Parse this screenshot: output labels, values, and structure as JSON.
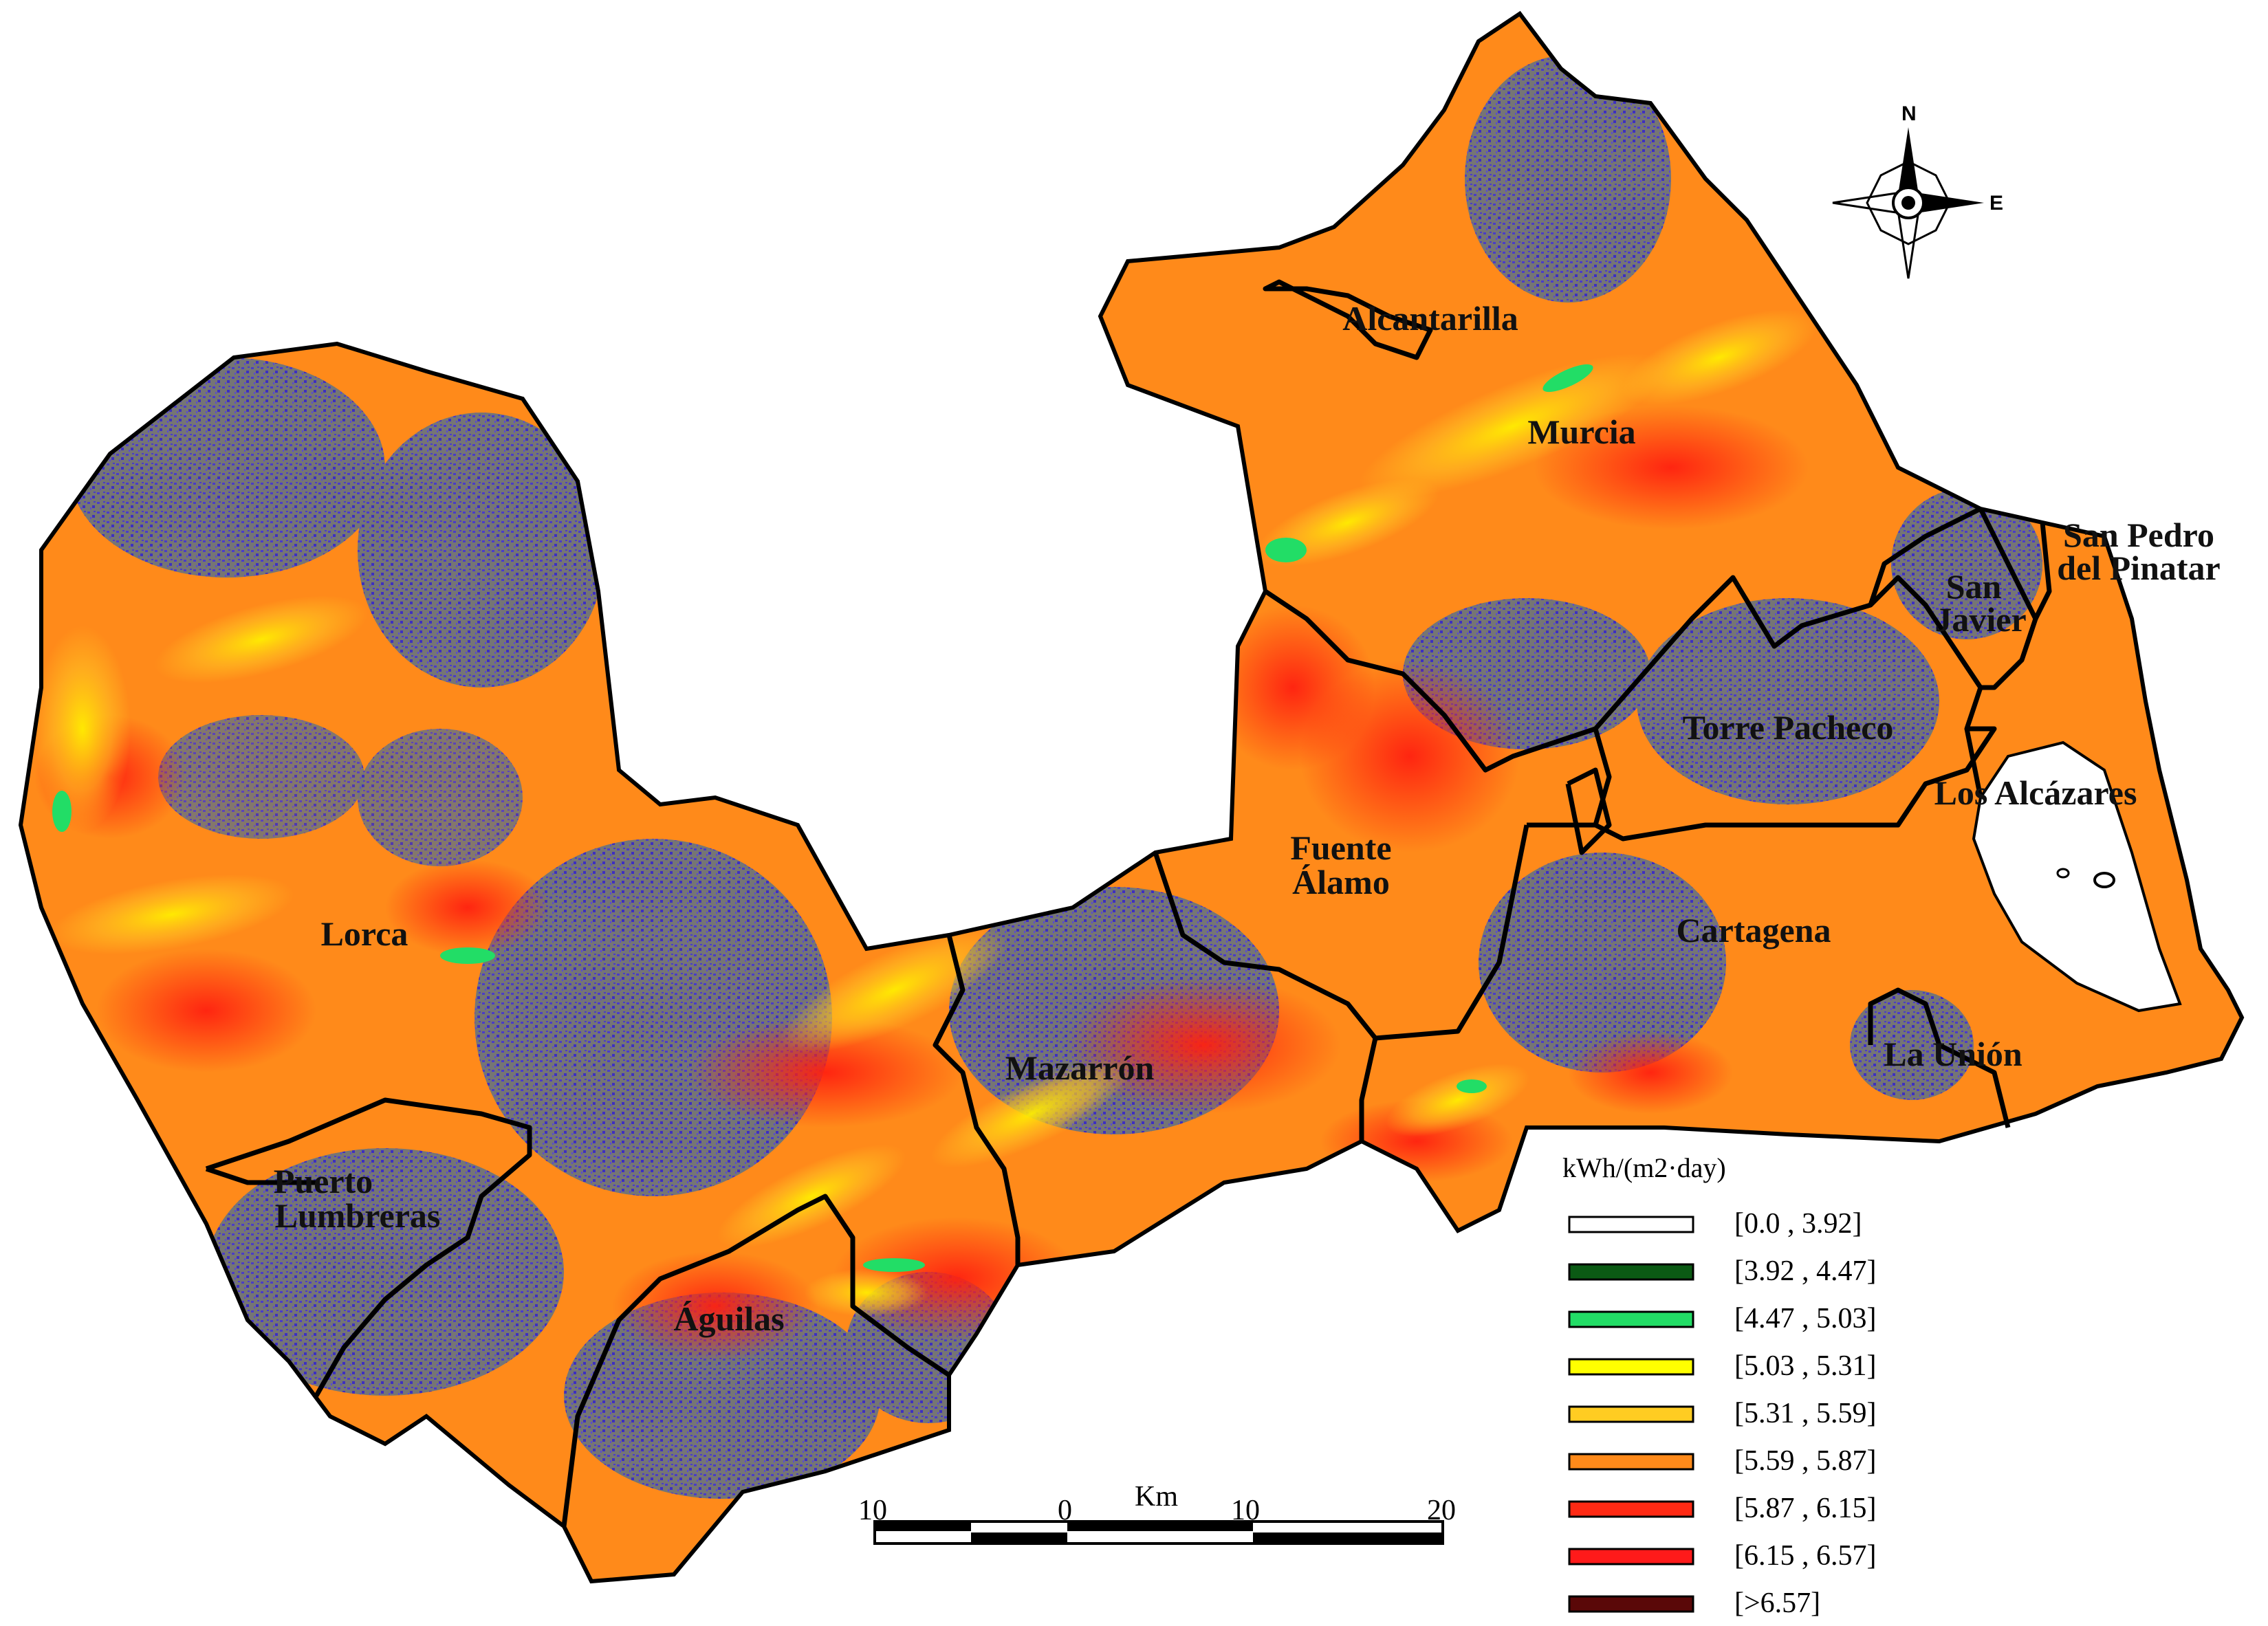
{
  "municipalities": [
    {
      "id": "lorca",
      "label_lines": [
        "Lorca"
      ]
    },
    {
      "id": "puerto-lumbreras",
      "label_lines": [
        "Puerto",
        "Lumbreras"
      ]
    },
    {
      "id": "aguilas",
      "label_lines": [
        "Águilas"
      ]
    },
    {
      "id": "mazarron",
      "label_lines": [
        "Mazarrón"
      ]
    },
    {
      "id": "fuente-alamo",
      "label_lines": [
        "Fuente",
        "Álamo"
      ]
    },
    {
      "id": "cartagena",
      "label_lines": [
        "Cartagena"
      ]
    },
    {
      "id": "la-union",
      "label_lines": [
        "La Unión"
      ]
    },
    {
      "id": "murcia",
      "label_lines": [
        "Murcia"
      ]
    },
    {
      "id": "alcantarilla",
      "label_lines": [
        "Alcantarilla"
      ]
    },
    {
      "id": "torre-pacheco",
      "label_lines": [
        "Torre Pacheco"
      ]
    },
    {
      "id": "san-javier",
      "label_lines": [
        "San",
        "Javier"
      ]
    },
    {
      "id": "san-pedro",
      "label_lines": [
        "San Pedro",
        "del Pinatar"
      ]
    },
    {
      "id": "los-alcazares",
      "label_lines": [
        "Los Alcázares"
      ]
    }
  ],
  "legend": {
    "title": "kWh/(m2·day)",
    "items": [
      {
        "label": "[0.0 , 3.92]",
        "color": "#ffffff"
      },
      {
        "label": "[3.92 , 4.47]",
        "color": "#0b5a14"
      },
      {
        "label": "[4.47 , 5.03]",
        "color": "#22dd66"
      },
      {
        "label": "[5.03 , 5.31]",
        "color": "#ffff00"
      },
      {
        "label": "[5.31 , 5.59]",
        "color": "#ffcc22"
      },
      {
        "label": "[5.59 , 5.87]",
        "color": "#ff8a1a"
      },
      {
        "label": "[5.87 , 6.15]",
        "color": "#ff2a14"
      },
      {
        "label": "[6.15 , 6.57]",
        "color": "#ff1a1a"
      },
      {
        "label": "[>6.57]",
        "color": "#5a0808"
      }
    ]
  },
  "scale_bar": {
    "unit": "Km",
    "ticks": [
      "10",
      "0",
      "10",
      "20"
    ]
  },
  "compass": {
    "north": "N",
    "east": "E"
  },
  "colors": {
    "gray_land": "#7a7a7a",
    "blue_speckle": "#4a3cc8",
    "orange": "#ff8a1a",
    "red": "#ff2a14",
    "yellow": "#ffff00",
    "border": "#000000"
  }
}
